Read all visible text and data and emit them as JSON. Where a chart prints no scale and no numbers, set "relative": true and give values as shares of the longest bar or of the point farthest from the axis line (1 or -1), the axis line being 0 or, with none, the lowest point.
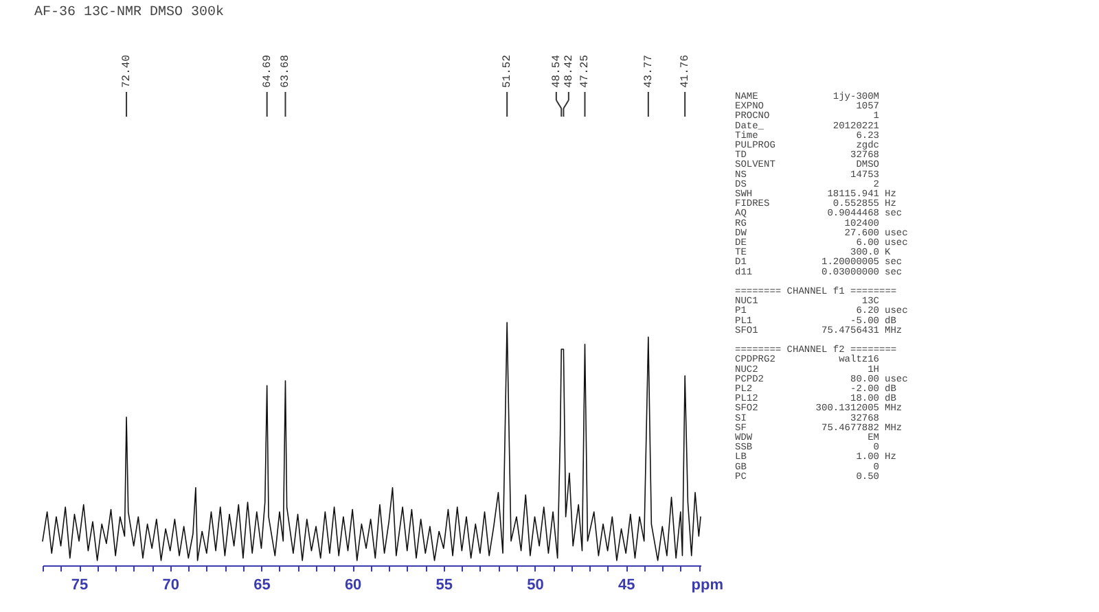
{
  "chart_data": {
    "type": "line",
    "title": "AF-36  13C-NMR  DMSO  300k",
    "xlabel": "ppm",
    "relative": true,
    "grid": false,
    "marker": "none",
    "line_style": "solid",
    "xlim": [
      77.0,
      40.9
    ],
    "xticks": [
      {
        "value": 77,
        "label": null
      },
      {
        "value": 76,
        "label": null
      },
      75,
      {
        "value": 74,
        "label": null
      },
      {
        "value": 73,
        "label": null
      },
      {
        "value": 72,
        "label": null
      },
      {
        "value": 71,
        "label": null
      },
      70,
      {
        "value": 69,
        "label": null
      },
      {
        "value": 68,
        "label": null
      },
      {
        "value": 67,
        "label": null
      },
      {
        "value": 66,
        "label": null
      },
      65,
      {
        "value": 64,
        "label": null
      },
      {
        "value": 63,
        "label": null
      },
      {
        "value": 62,
        "label": null
      },
      {
        "value": 61,
        "label": null
      },
      60,
      {
        "value": 59,
        "label": null
      },
      {
        "value": 58,
        "label": null
      },
      {
        "value": 57,
        "label": null
      },
      {
        "value": 56,
        "label": null
      },
      55,
      {
        "value": 54,
        "label": null
      },
      {
        "value": 53,
        "label": null
      },
      {
        "value": 52,
        "label": null
      },
      {
        "value": 51,
        "label": null
      },
      50,
      {
        "value": 49,
        "label": null
      },
      {
        "value": 48,
        "label": null
      },
      {
        "value": 47,
        "label": null
      },
      {
        "value": 46,
        "label": null
      },
      45,
      {
        "value": 44,
        "label": null
      },
      {
        "value": 43,
        "label": null
      },
      {
        "value": 42,
        "label": null
      },
      {
        "value": 41,
        "label": null
      }
    ],
    "x": [
      77.0,
      76.75,
      76.5,
      76.25,
      76.0,
      75.75,
      75.5,
      75.25,
      75.0,
      74.75,
      74.5,
      74.25,
      74.0,
      73.75,
      73.5,
      73.25,
      73.0,
      72.75,
      72.5,
      72.4,
      72.3,
      72.0,
      71.75,
      71.5,
      71.25,
      71.0,
      70.75,
      70.5,
      70.25,
      70.0,
      69.75,
      69.5,
      69.25,
      69.0,
      68.75,
      68.6,
      68.5,
      68.25,
      68.0,
      67.75,
      67.5,
      67.25,
      67.0,
      66.75,
      66.5,
      66.25,
      66.0,
      65.75,
      65.5,
      65.25,
      65.0,
      64.8,
      64.69,
      64.6,
      64.25,
      64.0,
      63.8,
      63.68,
      63.6,
      63.25,
      63.0,
      62.75,
      62.5,
      62.25,
      62.0,
      61.75,
      61.5,
      61.25,
      61.0,
      60.75,
      60.5,
      60.25,
      60.0,
      59.75,
      59.5,
      59.25,
      59.0,
      58.75,
      58.5,
      58.25,
      58.0,
      57.8,
      57.6,
      57.25,
      57.0,
      56.75,
      56.5,
      56.25,
      56.0,
      55.75,
      55.5,
      55.25,
      55.0,
      54.75,
      54.5,
      54.25,
      54.0,
      53.75,
      53.5,
      53.25,
      53.0,
      52.75,
      52.5,
      52.25,
      52.0,
      51.75,
      51.52,
      51.3,
      51.0,
      50.75,
      50.5,
      50.25,
      50.0,
      49.75,
      49.5,
      49.25,
      49.0,
      48.75,
      48.6,
      48.54,
      48.42,
      48.3,
      48.1,
      47.9,
      47.6,
      47.4,
      47.25,
      47.1,
      46.75,
      46.5,
      46.25,
      46.0,
      45.75,
      45.5,
      45.25,
      45.0,
      44.75,
      44.5,
      44.25,
      44.0,
      43.77,
      43.6,
      43.25,
      43.0,
      42.75,
      42.5,
      42.25,
      42.0,
      41.9,
      41.76,
      41.6,
      41.4,
      41.2,
      41.0,
      40.9
    ],
    "series": [
      {
        "color": "#111111",
        "values": [
          0.1,
          0.22,
          0.05,
          0.2,
          0.08,
          0.24,
          0.03,
          0.21,
          0.1,
          0.25,
          0.06,
          0.18,
          0.02,
          0.17,
          0.09,
          0.23,
          0.04,
          0.2,
          0.12,
          0.61,
          0.22,
          0.08,
          0.2,
          0.03,
          0.17,
          0.07,
          0.19,
          0.02,
          0.15,
          0.06,
          0.19,
          0.04,
          0.16,
          0.03,
          0.13,
          0.32,
          0.02,
          0.14,
          0.05,
          0.22,
          0.06,
          0.24,
          0.04,
          0.21,
          0.08,
          0.25,
          0.03,
          0.26,
          0.05,
          0.22,
          0.07,
          0.26,
          0.74,
          0.2,
          0.04,
          0.22,
          0.1,
          0.76,
          0.24,
          0.05,
          0.21,
          0.02,
          0.19,
          0.06,
          0.16,
          0.03,
          0.22,
          0.05,
          0.24,
          0.04,
          0.2,
          0.06,
          0.23,
          0.02,
          0.17,
          0.07,
          0.19,
          0.03,
          0.25,
          0.05,
          0.18,
          0.32,
          0.04,
          0.24,
          0.06,
          0.23,
          0.03,
          0.19,
          0.05,
          0.16,
          0.02,
          0.14,
          0.07,
          0.23,
          0.04,
          0.24,
          0.06,
          0.2,
          0.03,
          0.17,
          0.05,
          0.22,
          0.04,
          0.16,
          0.3,
          0.05,
          1.0,
          0.1,
          0.2,
          0.06,
          0.29,
          0.04,
          0.2,
          0.08,
          0.24,
          0.05,
          0.22,
          0.03,
          0.54,
          0.89,
          0.89,
          0.2,
          0.38,
          0.08,
          0.25,
          0.06,
          0.91,
          0.1,
          0.22,
          0.04,
          0.17,
          0.06,
          0.2,
          0.02,
          0.15,
          0.05,
          0.21,
          0.03,
          0.2,
          0.1,
          0.94,
          0.17,
          0.02,
          0.16,
          0.04,
          0.28,
          0.03,
          0.22,
          0.04,
          0.78,
          0.26,
          0.04,
          0.3,
          0.12,
          0.2
        ]
      }
    ],
    "annotations": [
      {
        "text": "72.40",
        "x": 72.4
      },
      {
        "text": "64.69",
        "x": 64.69
      },
      {
        "text": "63.68",
        "x": 63.68
      },
      {
        "text": "51.52",
        "x": 51.52
      },
      {
        "text": "48.54",
        "x": 48.54
      },
      {
        "text": "48.42",
        "x": 48.42
      },
      {
        "text": "47.25",
        "x": 47.25
      },
      {
        "text": "43.77",
        "x": 43.77
      },
      {
        "text": "41.76",
        "x": 41.76
      },
      "NAME  1jy-300M",
      "EXPNO  1057",
      "PROCNO  1",
      "Date_  20120221",
      "Time  6.23",
      "PULPROG  zgdc",
      "TD  32768",
      "SOLVENT  DMSO",
      "NS  14753",
      "DS  2",
      "SWH  18115.941  Hz",
      "FIDRES  0.552855  Hz",
      "AQ  0.9044468  sec",
      "RG  102400",
      "DW  27.600  usec",
      "DE  6.00  usec",
      "TE  300.0  K",
      "D1  1.20000005  sec",
      "d11  0.03000000  sec",
      "======== CHANNEL f1 ========",
      "NUC1  13C",
      "P1  6.20  usec",
      "PL1  -5.00  dB",
      "SFO1  75.4756431  MHz",
      "======== CHANNEL f2 ========",
      "CPDPRG2  waltz16",
      "NUC2  1H",
      "PCPD2  80.00  usec",
      "PL2  -2.00  dB",
      "PL12  18.00  dB",
      "SFO2  300.1312005  MHz",
      "SI  32768",
      "SF  75.4677882  MHz",
      "WDW  EM",
      "SSB  0",
      "LB  1.00  Hz",
      "GB  0",
      "PC  0.50"
    ]
  }
}
